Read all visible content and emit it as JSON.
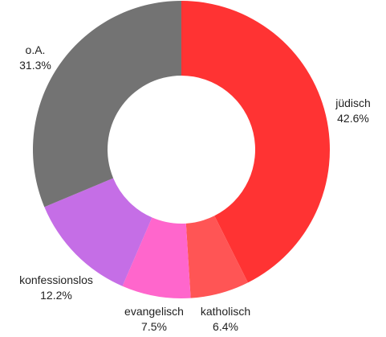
{
  "chart_data": {
    "type": "pie",
    "donut": true,
    "title": "",
    "slices": [
      {
        "label": "jüdisch",
        "pct_label": "42.6%",
        "value": 42.6,
        "color": "#ff3333"
      },
      {
        "label": "katholisch",
        "pct_label": "6.4%",
        "value": 6.4,
        "color": "#ff5555"
      },
      {
        "label": "evangelisch",
        "pct_label": "7.5%",
        "value": 7.5,
        "color": "#ff66cc"
      },
      {
        "label": "konfessionslos",
        "pct_label": "12.2%",
        "value": 12.2,
        "color": "#c56ee6"
      },
      {
        "label": "o.A.",
        "pct_label": "31.3%",
        "value": 31.3,
        "color": "#737373"
      }
    ],
    "start_angle_deg": 0,
    "direction": "clockwise",
    "legend": "none"
  }
}
